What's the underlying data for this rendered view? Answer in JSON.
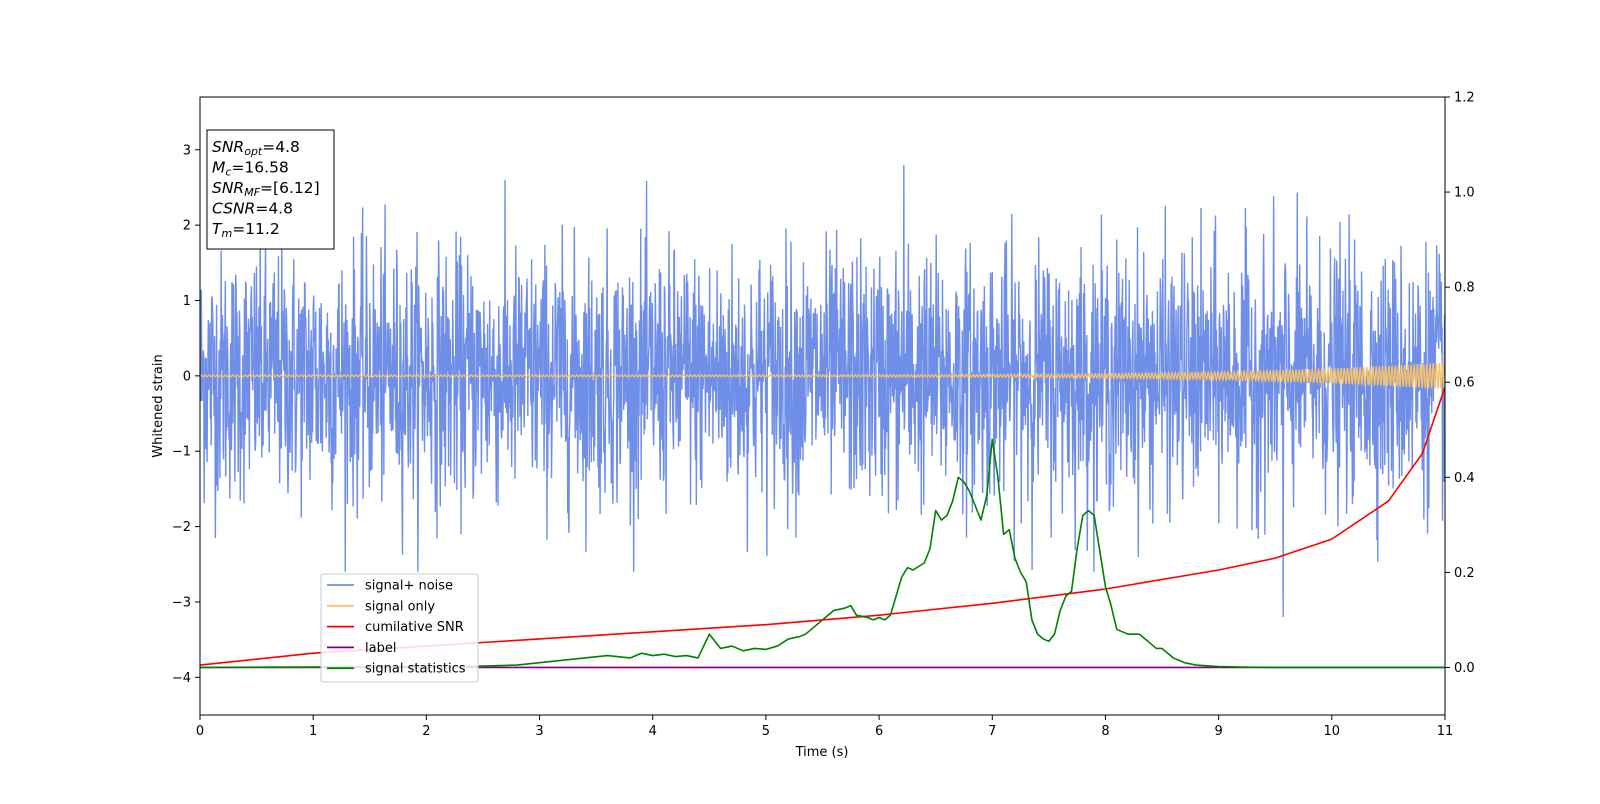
{
  "chart_data": {
    "type": "line",
    "xlabel": "Time (s)",
    "ylabel": "Whitened strain",
    "xlim": [
      0,
      11
    ],
    "ylim": [
      -4.5,
      3.7
    ],
    "y2lim": [
      -0.1,
      1.2
    ],
    "x_ticks": [
      "0",
      "1",
      "2",
      "3",
      "4",
      "5",
      "6",
      "7",
      "8",
      "9",
      "10",
      "11"
    ],
    "y_ticks": [
      "3",
      "2",
      "1",
      "0",
      "−1",
      "−2",
      "−3",
      "−4"
    ],
    "y2_ticks": [
      "1.2",
      "1.0",
      "0.8",
      "0.6",
      "0.4",
      "0.2",
      "0.0"
    ],
    "legend_position": "lower-left",
    "info_box": [
      {
        "main": "SNR",
        "sub": "opt",
        "rest": "=4.8"
      },
      {
        "main": "M",
        "sub": "c",
        "rest": "=16.58"
      },
      {
        "main": "SNR",
        "sub": "MF",
        "rest": "=[6.12]"
      },
      {
        "main": "CSNR",
        "sub": "",
        "rest": "=4.8"
      },
      {
        "main": "T",
        "sub": "m",
        "rest": "=11.2"
      }
    ],
    "series": [
      {
        "name": "signal+ noise",
        "color": "#6f8ee8",
        "axis": "left",
        "description": "whitened noise, envelope approx -2.5 to 2.6, peak 2.8 near t=6.2, min -3.2 near t=9.57"
      },
      {
        "name": "signal only",
        "color": "#f5c16c",
        "axis": "left",
        "description": "chirp growing from 0 to about ±0.17 at t=11"
      },
      {
        "name": "cumilative SNR",
        "color": "#ff0000",
        "axis": "right",
        "x": [
          0,
          1,
          2,
          3,
          4,
          5,
          6,
          7,
          8,
          9,
          9.5,
          10,
          10.5,
          10.8,
          11
        ],
        "y": [
          0.005,
          0.03,
          0.045,
          0.06,
          0.075,
          0.09,
          0.11,
          0.135,
          0.165,
          0.205,
          0.23,
          0.27,
          0.35,
          0.45,
          0.59
        ]
      },
      {
        "name": "label",
        "color": "#800080",
        "axis": "right",
        "x": [
          0,
          11
        ],
        "y": [
          0,
          0
        ]
      },
      {
        "name": "signal statistics",
        "color": "#008000",
        "axis": "right",
        "x": [
          0,
          1,
          2,
          2.5,
          2.8,
          3.0,
          3.2,
          3.4,
          3.6,
          3.8,
          3.9,
          4.0,
          4.1,
          4.2,
          4.3,
          4.4,
          4.5,
          4.6,
          4.7,
          4.8,
          4.9,
          5.0,
          5.1,
          5.2,
          5.3,
          5.35,
          5.45,
          5.5,
          5.6,
          5.7,
          5.75,
          5.8,
          5.9,
          5.95,
          6.0,
          6.05,
          6.1,
          6.2,
          6.25,
          6.3,
          6.4,
          6.45,
          6.5,
          6.55,
          6.6,
          6.65,
          6.7,
          6.75,
          6.8,
          6.9,
          6.95,
          7.0,
          7.05,
          7.1,
          7.15,
          7.2,
          7.25,
          7.3,
          7.35,
          7.4,
          7.45,
          7.5,
          7.55,
          7.6,
          7.65,
          7.7,
          7.75,
          7.8,
          7.85,
          7.9,
          8.0,
          8.05,
          8.1,
          8.2,
          8.3,
          8.4,
          8.45,
          8.5,
          8.6,
          8.7,
          8.8,
          9.0,
          9.2,
          9.5,
          10,
          11
        ],
        "y": [
          0,
          0.001,
          0.002,
          0.003,
          0.005,
          0.01,
          0.015,
          0.02,
          0.025,
          0.02,
          0.03,
          0.025,
          0.028,
          0.023,
          0.025,
          0.02,
          0.07,
          0.04,
          0.045,
          0.035,
          0.04,
          0.038,
          0.045,
          0.06,
          0.065,
          0.07,
          0.09,
          0.1,
          0.12,
          0.125,
          0.13,
          0.11,
          0.105,
          0.1,
          0.105,
          0.1,
          0.11,
          0.19,
          0.21,
          0.205,
          0.22,
          0.25,
          0.33,
          0.31,
          0.32,
          0.35,
          0.4,
          0.39,
          0.37,
          0.31,
          0.36,
          0.48,
          0.4,
          0.28,
          0.29,
          0.23,
          0.2,
          0.18,
          0.1,
          0.07,
          0.06,
          0.055,
          0.07,
          0.12,
          0.15,
          0.16,
          0.25,
          0.32,
          0.33,
          0.32,
          0.17,
          0.13,
          0.08,
          0.07,
          0.07,
          0.05,
          0.04,
          0.04,
          0.02,
          0.01,
          0.005,
          0.002,
          0.001,
          0,
          0,
          0
        ]
      }
    ]
  }
}
